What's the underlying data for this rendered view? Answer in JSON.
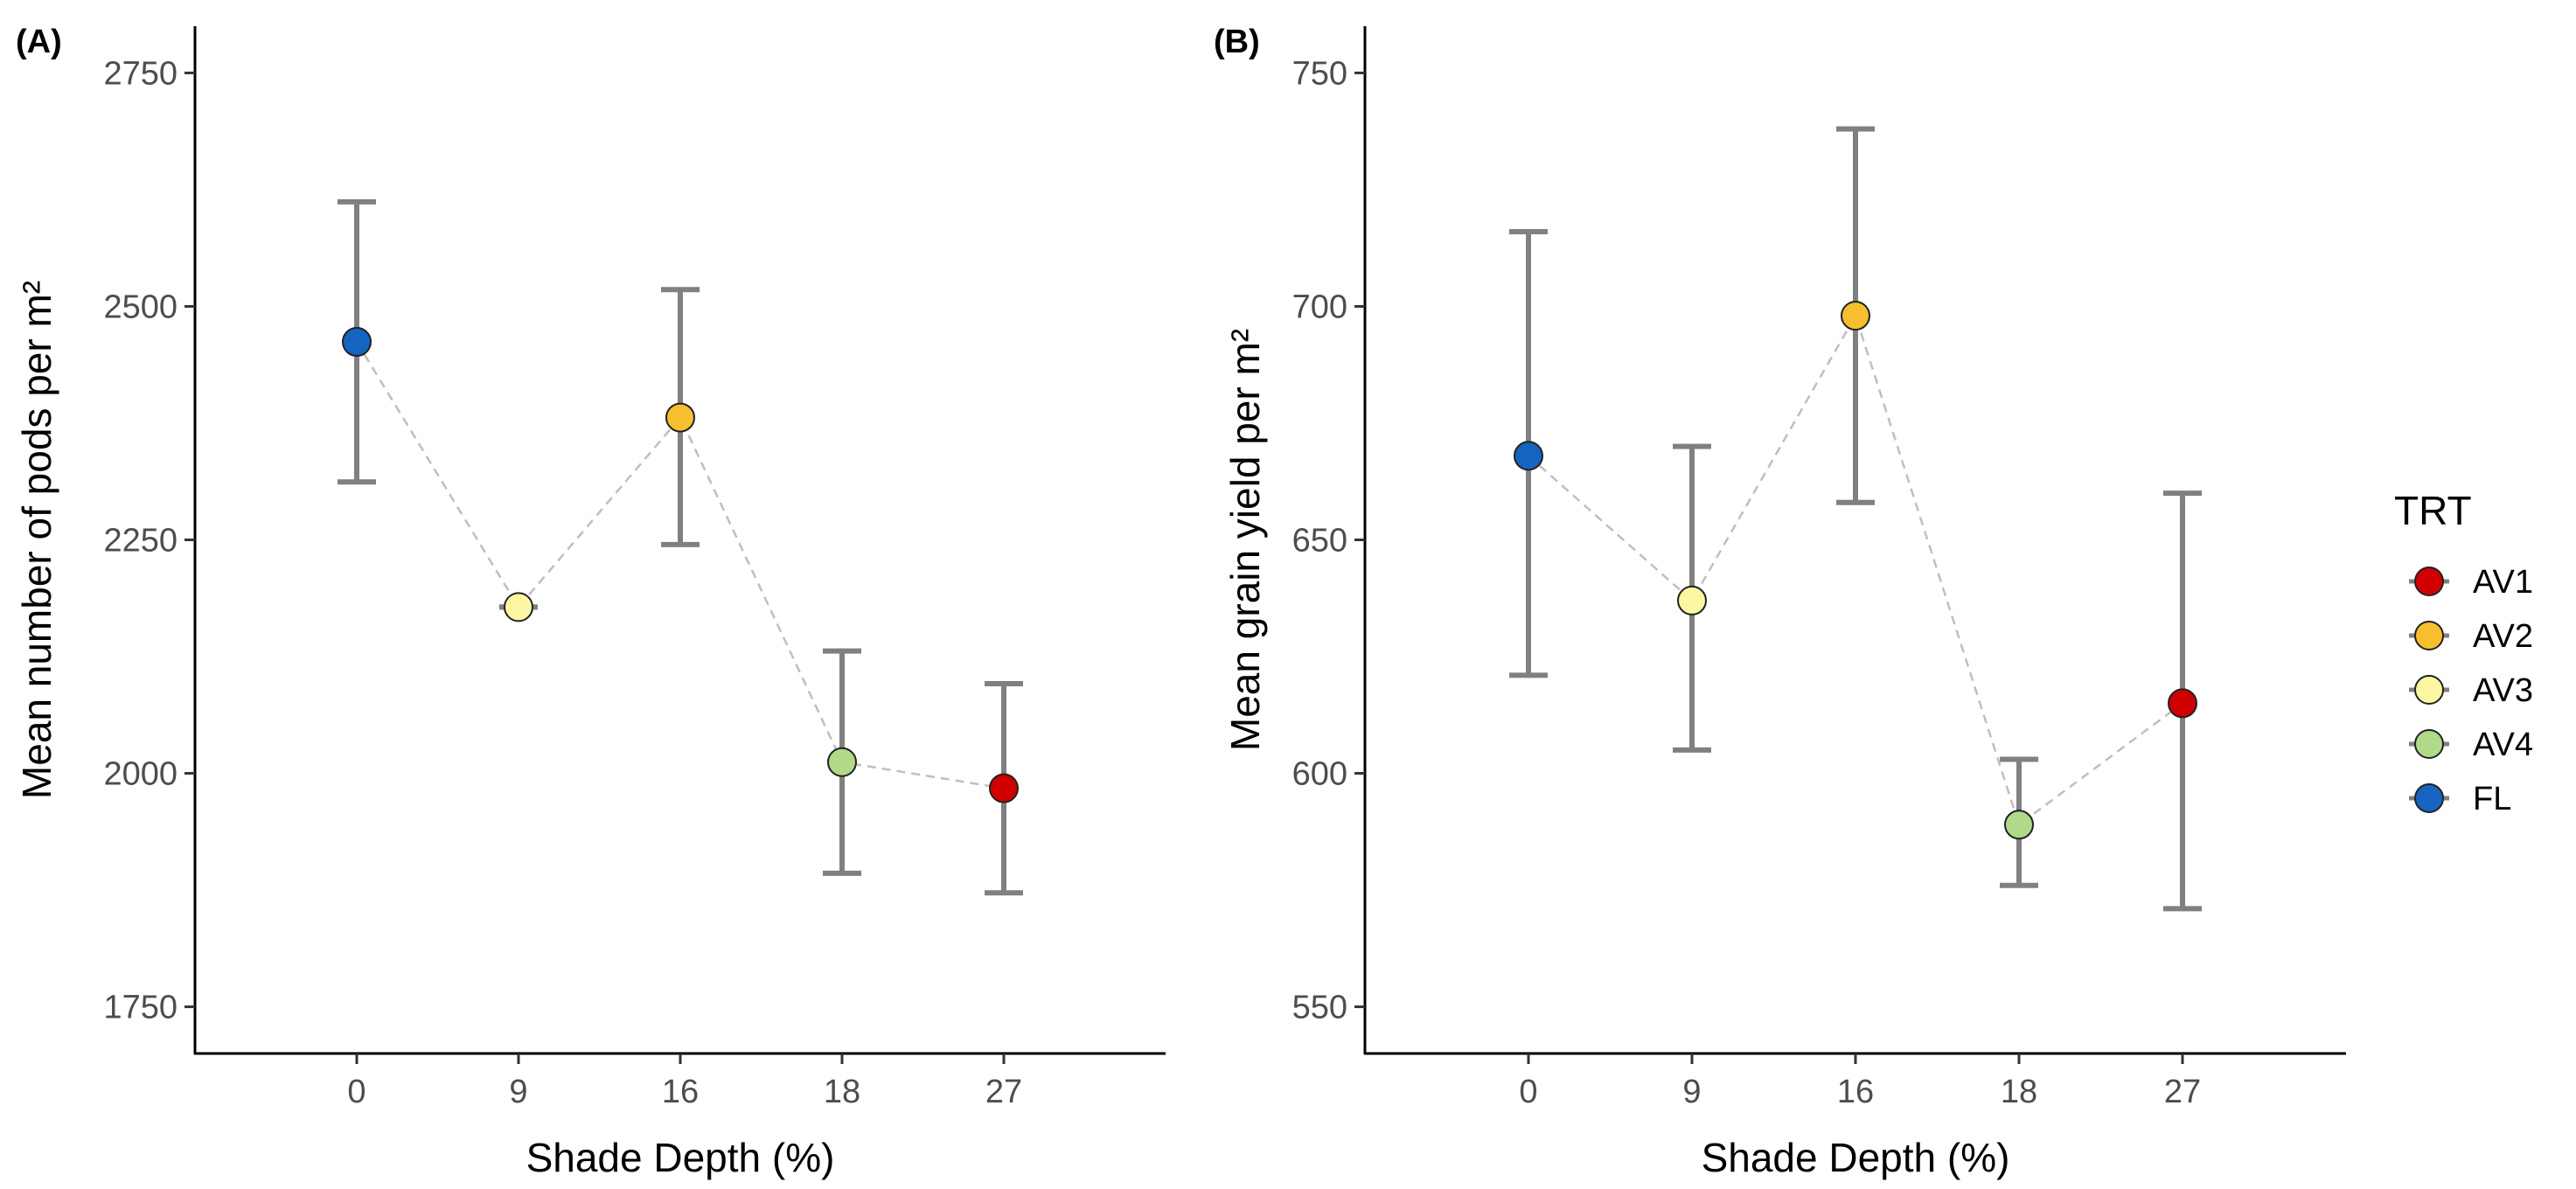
{
  "chart_data": [
    {
      "type": "scatter",
      "panel_label": "(A)",
      "xlabel": "Shade Depth (%)",
      "ylabel": "Mean number of pods per m²",
      "categories": [
        "0",
        "9",
        "16",
        "18",
        "27"
      ],
      "ylim": [
        1700,
        2800
      ],
      "yticks": [
        1750,
        2000,
        2250,
        2500,
        2750
      ],
      "points": [
        {
          "x": "0",
          "trt": "FL",
          "mean": 2462,
          "lower": 2312,
          "upper": 2612
        },
        {
          "x": "9",
          "trt": "AV3",
          "mean": 2178,
          "lower": 2178,
          "upper": 2178
        },
        {
          "x": "16",
          "trt": "AV2",
          "mean": 2381,
          "lower": 2245,
          "upper": 2518
        },
        {
          "x": "18",
          "trt": "AV4",
          "mean": 2012,
          "lower": 1893,
          "upper": 2131
        },
        {
          "x": "27",
          "trt": "AV1",
          "mean": 1984,
          "lower": 1872,
          "upper": 2096
        }
      ]
    },
    {
      "type": "scatter",
      "panel_label": "(B)",
      "xlabel": "Shade Depth (%)",
      "ylabel": "Mean grain yield per m²",
      "categories": [
        "0",
        "9",
        "16",
        "18",
        "27"
      ],
      "ylim": [
        540,
        760
      ],
      "yticks": [
        550,
        600,
        650,
        700,
        750
      ],
      "points": [
        {
          "x": "0",
          "trt": "FL",
          "mean": 668,
          "lower": 621,
          "upper": 716
        },
        {
          "x": "9",
          "trt": "AV3",
          "mean": 637,
          "lower": 605,
          "upper": 670
        },
        {
          "x": "16",
          "trt": "AV2",
          "mean": 698,
          "lower": 658,
          "upper": 738
        },
        {
          "x": "18",
          "trt": "AV4",
          "mean": 589,
          "lower": 576,
          "upper": 603
        },
        {
          "x": "27",
          "trt": "AV1",
          "mean": 615,
          "lower": 571,
          "upper": 660
        }
      ]
    }
  ],
  "legend": {
    "title": "TRT",
    "items": [
      {
        "label": "AV1",
        "color": "#d10000"
      },
      {
        "label": "AV2",
        "color": "#f7be2f"
      },
      {
        "label": "AV3",
        "color": "#fdf7a3"
      },
      {
        "label": "AV4",
        "color": "#b0d98a"
      },
      {
        "label": "FL",
        "color": "#1565c0"
      }
    ]
  },
  "colors": {
    "errorbar": "#808080",
    "connector": "#bfbfbf",
    "axis": "#000000"
  }
}
